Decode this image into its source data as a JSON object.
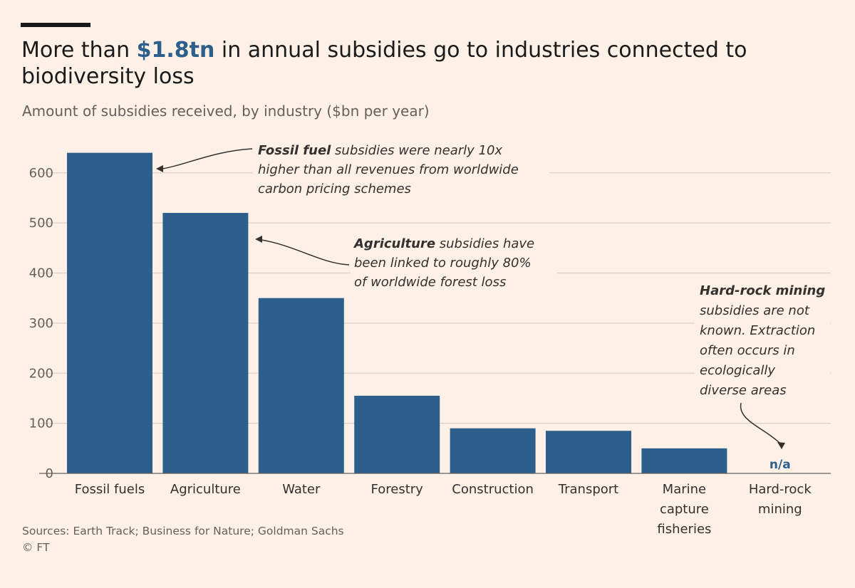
{
  "header": {
    "title_before": "More than ",
    "title_highlight": "$1.8tn",
    "title_after": " in annual subsidies go to industries connected to biodiversity loss",
    "subtitle": "Amount of subsidies received, by industry ($bn per year)"
  },
  "colors": {
    "bar": "#2d5f8d",
    "background": "#fdf0e6",
    "highlight": "#2d5f8d"
  },
  "chart_data": {
    "type": "bar",
    "title": "More than $1.8tn in annual subsidies go to industries connected to biodiversity loss",
    "ylabel": "Amount of subsidies received ($bn per year)",
    "xlabel": "",
    "ylim": [
      0,
      650
    ],
    "yticks": [
      0,
      100,
      200,
      300,
      400,
      500,
      600
    ],
    "grid": true,
    "categories": [
      [
        "Fossil fuels"
      ],
      [
        "Agriculture"
      ],
      [
        "Water"
      ],
      [
        "Forestry"
      ],
      [
        "Construction"
      ],
      [
        "Transport"
      ],
      [
        "Marine",
        "capture",
        "fisheries"
      ],
      [
        "Hard-rock",
        "mining"
      ]
    ],
    "values": [
      640,
      520,
      350,
      155,
      90,
      85,
      50,
      null
    ],
    "missing_label": "n/a",
    "annotations": [
      {
        "target": 0,
        "bold": "Fossil fuel",
        "rest": " subsidies were nearly 10x",
        "lines": [
          "higher than all revenues from worldwide",
          "carbon pricing schemes"
        ]
      },
      {
        "target": 1,
        "bold": "Agriculture",
        "rest": " subsidies have",
        "lines": [
          "been linked to roughly 80%",
          "of worldwide forest loss"
        ]
      },
      {
        "target": 7,
        "bold": "Hard-rock mining",
        "rest": "",
        "lines": [
          "subsidies are not",
          "known. Extraction",
          "often occurs in",
          "ecologically",
          "diverse areas"
        ]
      }
    ]
  },
  "footer": {
    "sources": "Sources: Earth Track; Business for Nature; Goldman Sachs",
    "credit": "© FT"
  }
}
